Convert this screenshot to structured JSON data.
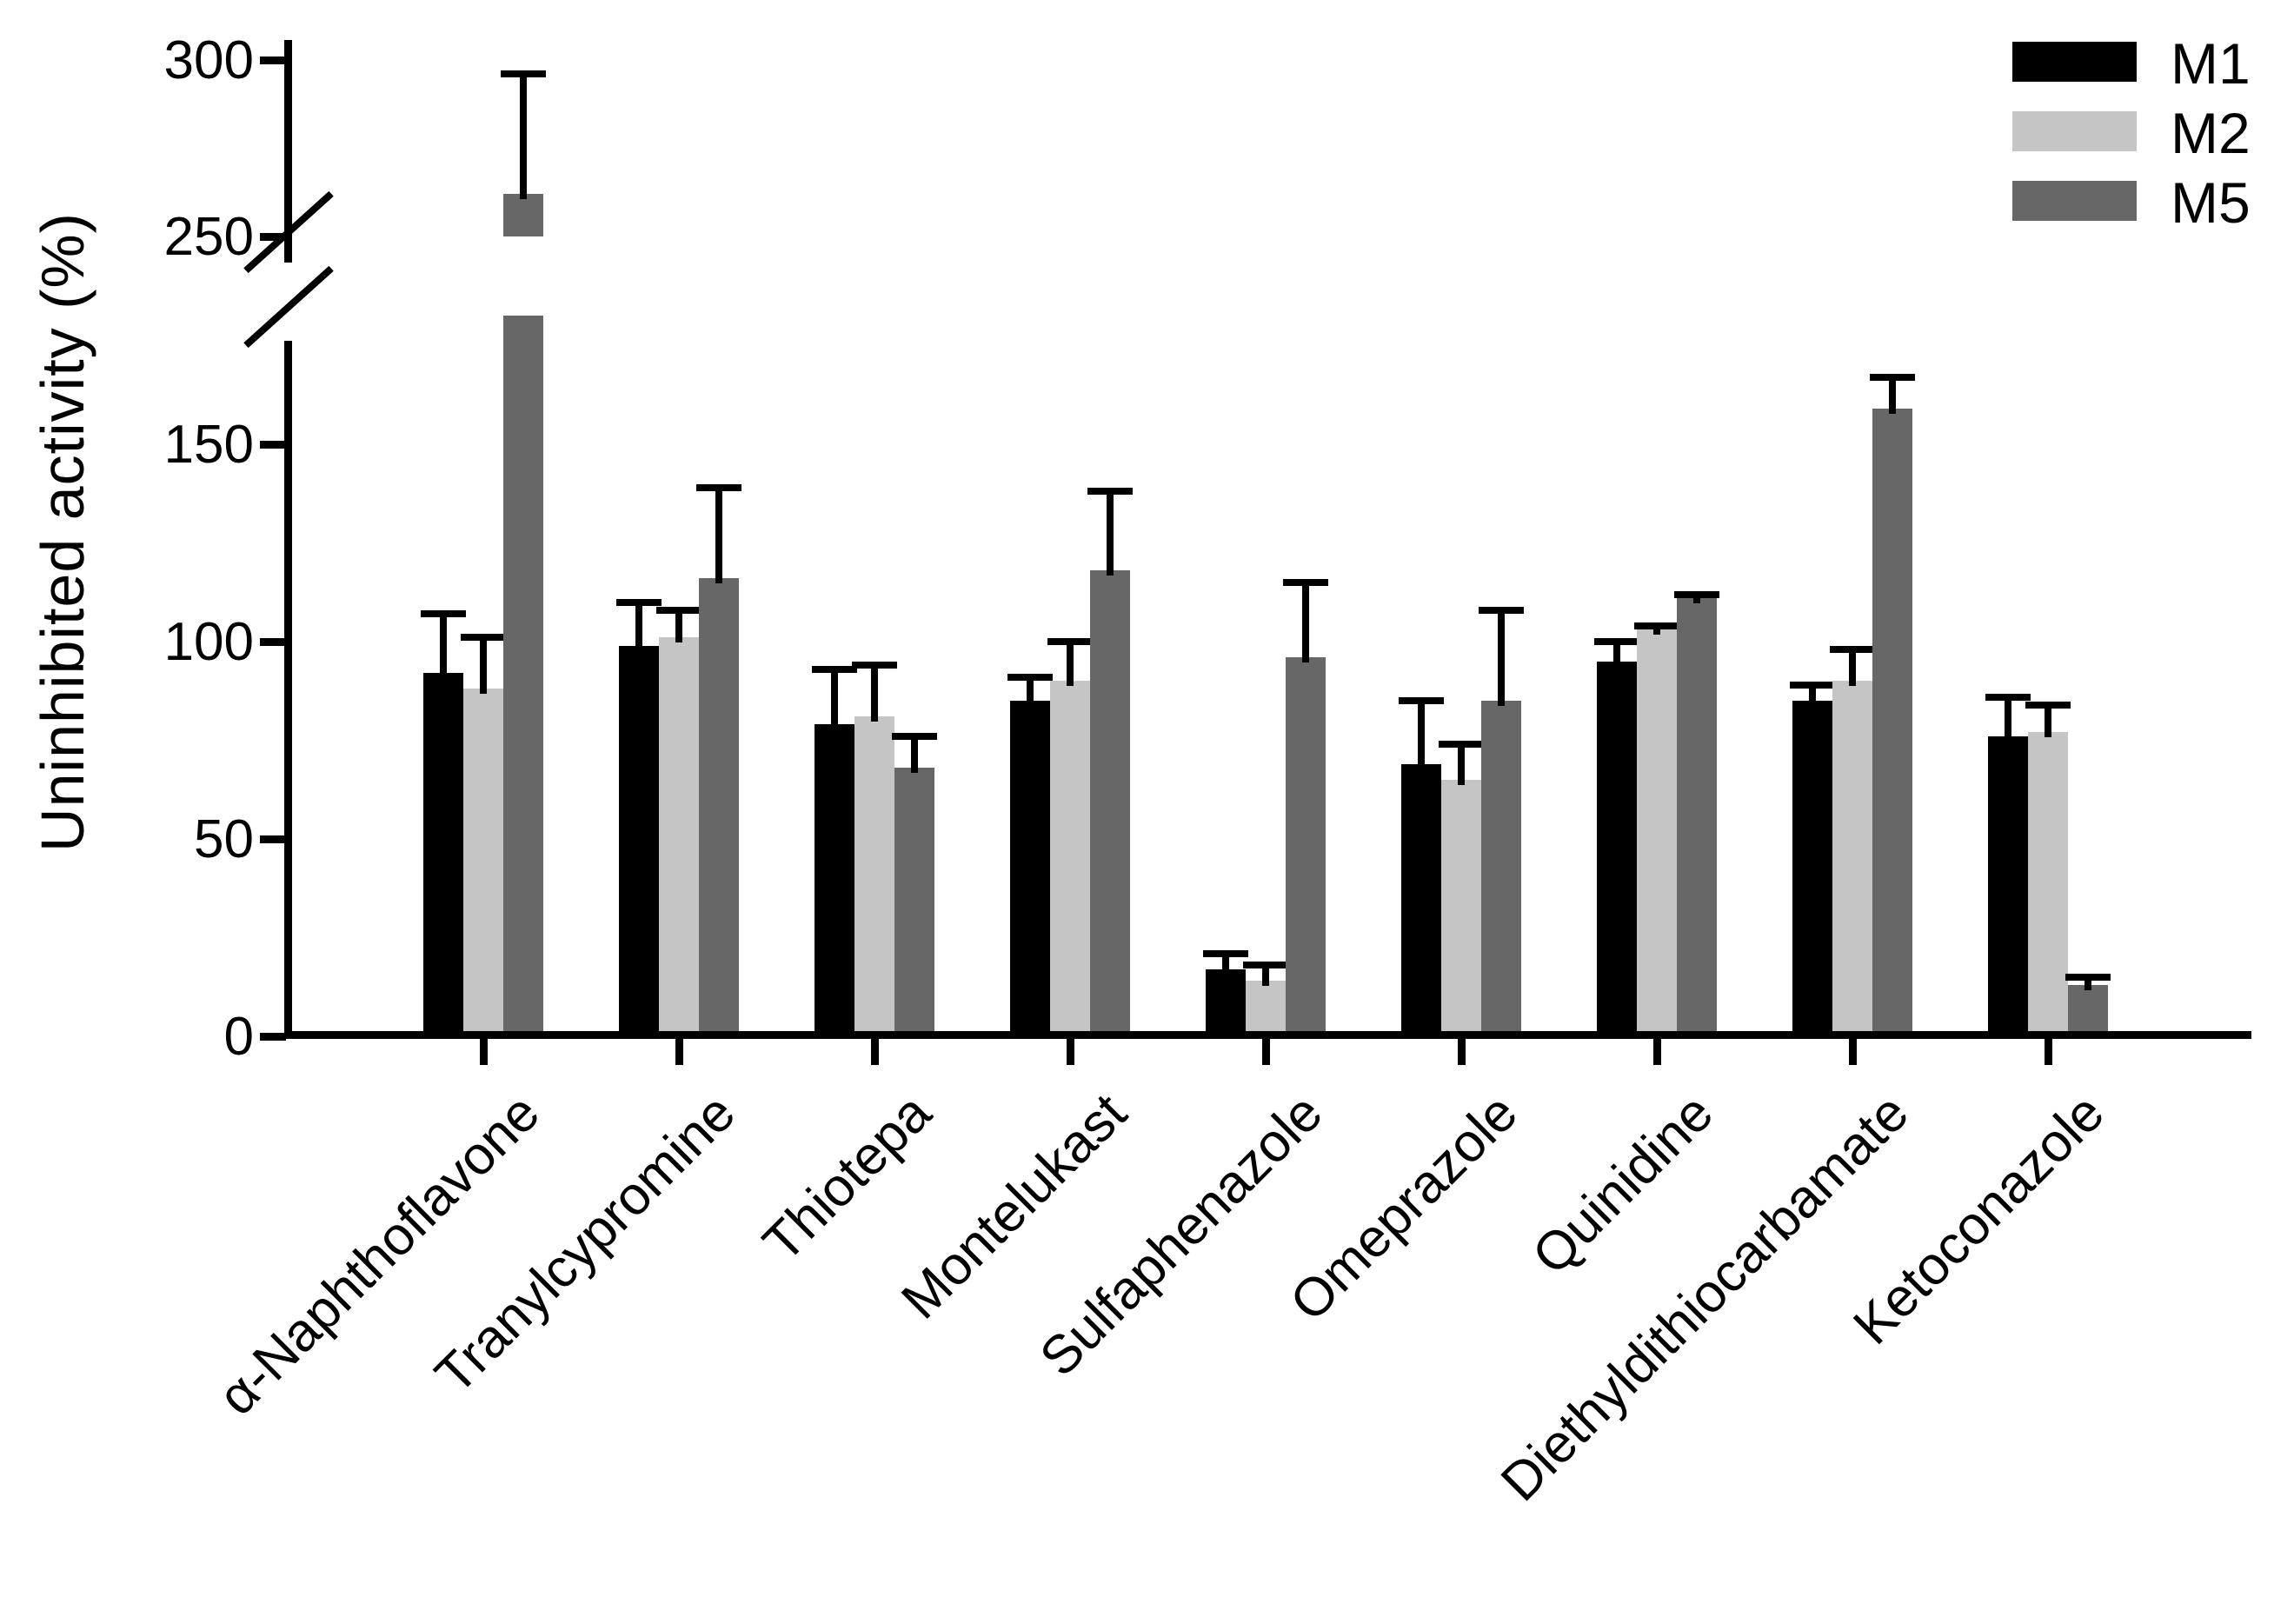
{
  "figure": {
    "background": "#ffffff"
  },
  "y_axis": {
    "title": "Uninhibited activity (%)",
    "lower_ticks": [
      0,
      50,
      100,
      150
    ],
    "upper_ticks": [
      250,
      300
    ],
    "has_break": true
  },
  "legend": {
    "position": "top-right",
    "items": [
      {
        "label": "M1",
        "color": "#000000"
      },
      {
        "label": "M2",
        "color": "#c5c5c5"
      },
      {
        "label": "M5",
        "color": "#676767"
      }
    ]
  },
  "chart_data": {
    "type": "bar",
    "title": "",
    "xlabel": "",
    "ylabel": "Uninhibited activity (%)",
    "grid": false,
    "legend_position": "top-right",
    "axis_break_between": [
      176,
      244
    ],
    "ylim_lower_segment": [
      0,
      176
    ],
    "ylim_upper_segment": [
      244,
      305
    ],
    "categories": [
      "α-Naphthoflavone",
      "Tranylcypromine",
      "Thiotepa",
      "Montelukast",
      "Sulfaphenazole",
      "Omeprazole",
      "Quinidine",
      "Diethyldithiocarbamate",
      "Ketoconazole"
    ],
    "series": [
      {
        "name": "M1",
        "color": "#000000",
        "values": [
          92,
          99,
          79,
          85,
          17,
          69,
          95,
          85,
          76
        ],
        "error_tops": [
          107,
          110,
          93,
          91,
          21,
          85,
          100,
          89,
          86
        ]
      },
      {
        "name": "M2",
        "color": "#c5c5c5",
        "values": [
          88,
          101,
          81,
          90,
          14,
          65,
          103,
          90,
          77
        ],
        "error_tops": [
          101,
          108,
          94,
          100,
          18,
          74,
          104,
          98,
          84
        ]
      },
      {
        "name": "M5",
        "color": "#676767",
        "values": [
          262,
          116,
          68,
          118,
          96,
          85,
          111,
          159,
          13
        ],
        "error_tops": [
          296,
          139,
          76,
          138,
          115,
          108,
          112,
          167,
          15
        ]
      }
    ]
  }
}
